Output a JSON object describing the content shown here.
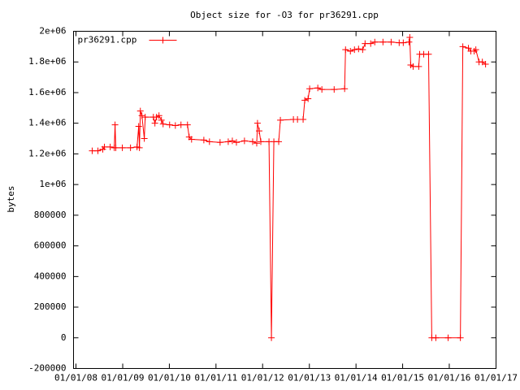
{
  "chart_data": {
    "type": "line",
    "title": "Object size for -O3 for pr36291.cpp",
    "y_label": "bytes",
    "legend": "top-left",
    "xlim": [
      "2007-12-13",
      "2017-01-01"
    ],
    "xticks": [
      {
        "value": "2008-01-01",
        "label": "01/01/08"
      },
      {
        "value": "2009-01-01",
        "label": "01/01/09"
      },
      {
        "value": "2010-01-01",
        "label": "01/01/10"
      },
      {
        "value": "2011-01-01",
        "label": "01/01/11"
      },
      {
        "value": "2012-01-01",
        "label": "01/01/12"
      },
      {
        "value": "2013-01-01",
        "label": "01/01/13"
      },
      {
        "value": "2014-01-01",
        "label": "01/01/14"
      },
      {
        "value": "2015-01-01",
        "label": "01/01/15"
      },
      {
        "value": "2016-01-01",
        "label": "01/01/16"
      },
      {
        "value": "2017-01-01",
        "label": "01/01/17"
      }
    ],
    "ylim": [
      -200000,
      2000000
    ],
    "yticks": [
      {
        "value": 2000000,
        "label": "2e+06"
      },
      {
        "value": 1800000,
        "label": "1.8e+06"
      },
      {
        "value": 1600000,
        "label": "1.6e+06"
      },
      {
        "value": 1400000,
        "label": "1.4e+06"
      },
      {
        "value": 1200000,
        "label": "1.2e+06"
      },
      {
        "value": 1000000,
        "label": "1e+06"
      },
      800000,
      600000,
      400000,
      200000,
      0,
      -200000
    ],
    "x": [
      "2008-05-07",
      "2008-06-21",
      "2008-07-29",
      "2008-08-11",
      "2008-09-25",
      "2008-10-27",
      "2008-11-02",
      "2008-11-08",
      "2008-12-29",
      "2009-03-03",
      "2009-04-23",
      "2009-05-06",
      "2009-05-12",
      "2009-05-19",
      "2009-05-31",
      "2009-06-19",
      "2009-06-26",
      "2009-08-29",
      "2009-09-10",
      "2009-09-23",
      "2009-10-12",
      "2009-10-31",
      "2009-11-13",
      "2010-01-03",
      "2010-02-17",
      "2010-04-02",
      "2010-05-23",
      "2010-06-05",
      "2010-06-24",
      "2010-09-28",
      "2010-11-11",
      "2011-02-02",
      "2011-04-07",
      "2011-05-09",
      "2011-06-10",
      "2011-08-12",
      "2011-10-15",
      "2011-11-16",
      "2011-11-22",
      "2011-12-05",
      "2011-12-18",
      "2012-02-20",
      "2012-03-10",
      "2012-03-29",
      "2012-05-06",
      "2012-05-19",
      "2012-08-29",
      "2012-09-30",
      "2012-11-13",
      "2012-11-26",
      "2012-12-22",
      "2013-01-03",
      "2013-03-08",
      "2013-04-09",
      "2013-07-14",
      "2013-10-04",
      "2013-10-11",
      "2013-11-18",
      "2013-12-20",
      "2014-01-21",
      "2014-02-22",
      "2014-03-13",
      "2014-04-26",
      "2014-05-28",
      "2014-07-31",
      "2014-10-03",
      "2014-12-05",
      "2015-01-06",
      "2015-02-20",
      "2015-02-26",
      "2015-03-05",
      "2015-03-24",
      "2015-05-07",
      "2015-05-14",
      "2015-06-15",
      "2015-07-23",
      "2015-08-17",
      "2015-09-18",
      "2015-12-23",
      "2016-03-28",
      "2016-04-16",
      "2016-05-30",
      "2016-06-18",
      "2016-07-14",
      "2016-07-27",
      "2016-08-21",
      "2016-09-16",
      "2016-10-11"
    ],
    "series": [
      {
        "name": "pr36291.cpp",
        "color": "#ff0000",
        "values": [
          1220000,
          1220000,
          1230000,
          1245000,
          1245000,
          1240000,
          1390000,
          1240000,
          1240000,
          1240000,
          1245000,
          1380000,
          1240000,
          1480000,
          1450000,
          1300000,
          1440000,
          1440000,
          1400000,
          1440000,
          1450000,
          1420000,
          1395000,
          1390000,
          1385000,
          1390000,
          1390000,
          1310000,
          1295000,
          1290000,
          1280000,
          1275000,
          1280000,
          1285000,
          1275000,
          1285000,
          1280000,
          1270000,
          1400000,
          1350000,
          1280000,
          1280000,
          0,
          1280000,
          1280000,
          1420000,
          1425000,
          1425000,
          1425000,
          1550000,
          1560000,
          1625000,
          1630000,
          1620000,
          1620000,
          1625000,
          1880000,
          1870000,
          1880000,
          1885000,
          1880000,
          1920000,
          1920000,
          1930000,
          1930000,
          1930000,
          1925000,
          1925000,
          1930000,
          1960000,
          1780000,
          1770000,
          1770000,
          1850000,
          1850000,
          1850000,
          0,
          0,
          0,
          0,
          1900000,
          1890000,
          1870000,
          1870000,
          1880000,
          1800000,
          1800000,
          1785000
        ]
      }
    ]
  }
}
